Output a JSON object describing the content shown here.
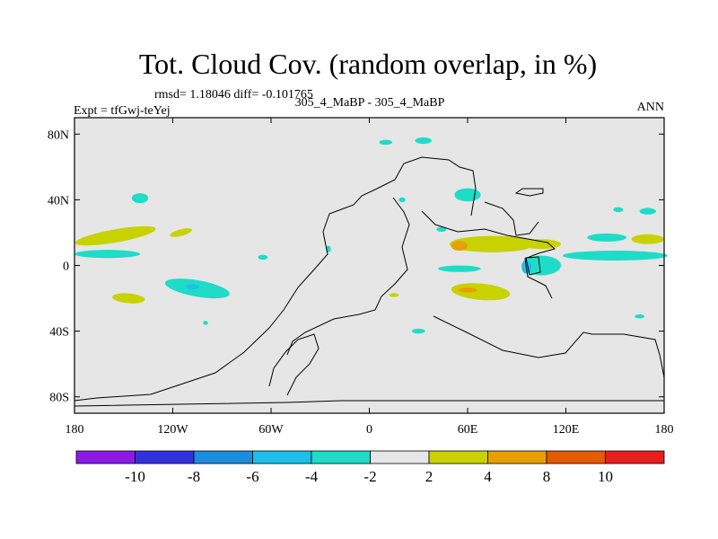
{
  "chart_data": {
    "type": "heatmap",
    "title": "Tot. Cloud Cov. (random overlap, in %)",
    "stats_line": "rmsd= 1.18046 diff= -0.101765",
    "left_label": "Expt = tfGwj-teYej",
    "center_label": "305_4_MaBP - 305_4_MaBP",
    "right_label": "ANN",
    "x_ticks": [
      {
        "value": -180,
        "label": "180"
      },
      {
        "value": -120,
        "label": "120W"
      },
      {
        "value": -60,
        "label": "60W"
      },
      {
        "value": 0,
        "label": "0"
      },
      {
        "value": 60,
        "label": "60E"
      },
      {
        "value": 120,
        "label": "120E"
      },
      {
        "value": 180,
        "label": "180"
      }
    ],
    "y_ticks": [
      {
        "value": 80,
        "label": "80N"
      },
      {
        "value": 40,
        "label": "40N"
      },
      {
        "value": 0,
        "label": "0"
      },
      {
        "value": -40,
        "label": "40S"
      },
      {
        "value": -80,
        "label": "80S"
      }
    ],
    "xlim": [
      -180,
      180
    ],
    "ylim": [
      -90,
      90
    ],
    "background_color": "#e6e6e6",
    "colorbar": {
      "levels": [
        -10,
        -8,
        -6,
        -4,
        -2,
        2,
        4,
        8,
        10
      ],
      "labels": [
        "-10",
        "-8",
        "-6",
        "-4",
        "-2",
        "2",
        "4",
        "8",
        "10"
      ],
      "colors": [
        "#8c1ae6",
        "#3232dc",
        "#1e8cdc",
        "#1ebee6",
        "#1edcc8",
        "#e6e6e6",
        "#c8d200",
        "#e6a000",
        "#e65a00",
        "#e61e1e"
      ]
    },
    "anomalies": [
      {
        "lon": -140,
        "lat": 41,
        "rlon": 5,
        "rlat": 3,
        "rot": 0,
        "color": "#1edcc8"
      },
      {
        "lon": -155,
        "lat": 18,
        "rlon": 25,
        "rlat": 4,
        "rot": -10,
        "color": "#c8d200"
      },
      {
        "lon": -115,
        "lat": 20,
        "rlon": 7,
        "rlat": 2,
        "rot": -15,
        "color": "#c8d200"
      },
      {
        "lon": -160,
        "lat": 7,
        "rlon": 20,
        "rlat": 2.5,
        "rot": 0,
        "color": "#1edcc8"
      },
      {
        "lon": -105,
        "lat": -14,
        "rlon": 20,
        "rlat": 5,
        "rot": 10,
        "color": "#1edcc8"
      },
      {
        "lon": -108,
        "lat": -13,
        "rlon": 4,
        "rlat": 1.5,
        "rot": 0,
        "color": "#1ebee6"
      },
      {
        "lon": -147,
        "lat": -20,
        "rlon": 10,
        "rlat": 3,
        "rot": 5,
        "color": "#c8d200"
      },
      {
        "lon": -65,
        "lat": 5,
        "rlon": 3,
        "rlat": 1.5,
        "rot": 0,
        "color": "#1edcc8"
      },
      {
        "lon": -25,
        "lat": 10,
        "rlon": 1.5,
        "rlat": 2,
        "rot": 0,
        "color": "#1edcc8"
      },
      {
        "lon": 10,
        "lat": 75,
        "rlon": 4,
        "rlat": 1.5,
        "rot": 0,
        "color": "#1edcc8"
      },
      {
        "lon": 33,
        "lat": 76,
        "rlon": 5,
        "rlat": 2,
        "rot": 0,
        "color": "#1edcc8"
      },
      {
        "lon": 60,
        "lat": 43,
        "rlon": 8,
        "rlat": 4,
        "rot": 0,
        "color": "#1edcc8"
      },
      {
        "lon": 20,
        "lat": 40,
        "rlon": 2,
        "rlat": 1.5,
        "rot": 0,
        "color": "#1edcc8"
      },
      {
        "lon": 44,
        "lat": 22,
        "rlon": 3,
        "rlat": 1.5,
        "rot": 0,
        "color": "#1edcc8"
      },
      {
        "lon": 75,
        "lat": 13,
        "rlon": 26,
        "rlat": 5,
        "rot": 0,
        "color": "#c8d200"
      },
      {
        "lon": 105,
        "lat": 13,
        "rlon": 12,
        "rlat": 3,
        "rot": 0,
        "color": "#c8d200"
      },
      {
        "lon": 55,
        "lat": 12,
        "rlon": 5,
        "rlat": 3,
        "rot": 0,
        "color": "#e6a000"
      },
      {
        "lon": 145,
        "lat": 17,
        "rlon": 12,
        "rlat": 2.5,
        "rot": 0,
        "color": "#1edcc8"
      },
      {
        "lon": 170,
        "lat": 16,
        "rlon": 10,
        "rlat": 3,
        "rot": 0,
        "color": "#c8d200"
      },
      {
        "lon": 150,
        "lat": 6,
        "rlon": 32,
        "rlat": 3,
        "rot": 0,
        "color": "#1edcc8"
      },
      {
        "lon": 105,
        "lat": 0,
        "rlon": 12,
        "rlat": 6,
        "rot": 0,
        "color": "#1edcc8"
      },
      {
        "lon": 96,
        "lat": -1,
        "rlon": 3,
        "rlat": 4,
        "rot": 0,
        "color": "#1ebee6"
      },
      {
        "lon": 55,
        "lat": -2,
        "rlon": 13,
        "rlat": 2,
        "rot": 0,
        "color": "#1edcc8"
      },
      {
        "lon": 68,
        "lat": -16,
        "rlon": 18,
        "rlat": 5,
        "rot": 5,
        "color": "#c8d200"
      },
      {
        "lon": 60,
        "lat": -15,
        "rlon": 6,
        "rlat": 1.5,
        "rot": 0,
        "color": "#e6a000"
      },
      {
        "lon": 170,
        "lat": 33,
        "rlon": 5,
        "rlat": 2,
        "rot": 0,
        "color": "#1edcc8"
      },
      {
        "lon": 152,
        "lat": 34,
        "rlon": 3,
        "rlat": 1.5,
        "rot": 0,
        "color": "#1edcc8"
      },
      {
        "lon": 30,
        "lat": -40,
        "rlon": 4,
        "rlat": 1.5,
        "rot": 0,
        "color": "#1edcc8"
      },
      {
        "lon": 165,
        "lat": -31,
        "rlon": 3,
        "rlat": 1.2,
        "rot": 0,
        "color": "#1edcc8"
      },
      {
        "lon": 15,
        "lat": -18,
        "rlon": 3,
        "rlat": 1.2,
        "rot": 0,
        "color": "#c8d200"
      },
      {
        "lon": -100,
        "lat": -35,
        "rlon": 1.5,
        "rlat": 1.2,
        "rot": 0,
        "color": "#1edcc8"
      }
    ]
  }
}
